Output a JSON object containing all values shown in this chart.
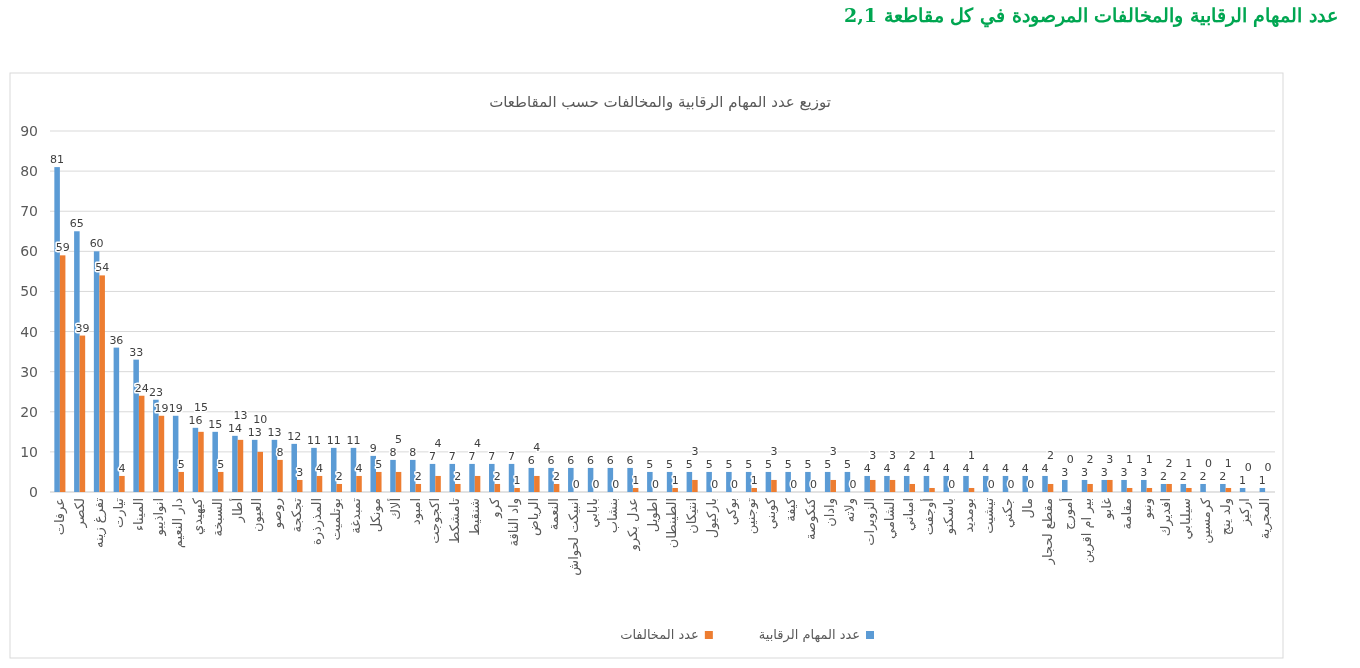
{
  "chart_data": {
    "type": "bar",
    "title": "2,1   عدد المهام الرقابية والمخالفات المرصودة في كل مقاطعة",
    "subtitle": "توزيع عدد المهام الرقابية والمخالفات حسب المقاطعات",
    "categories": [
      "عرفات",
      "لكصر",
      "تفرغ زينه",
      "تيارت",
      "الميناء",
      "انواذيبو",
      "دار النعيم",
      "كيهيدي",
      "السبخة",
      "أطار",
      "العيون",
      "روصو",
      "تجكجة",
      "المذرذرة",
      "بوتلميت",
      "تمبدغة",
      "مونكل",
      "ألاك",
      "امبود",
      "اكجوجت",
      "تامشكط",
      "شنقيط",
      "كرو",
      "واد الناقة",
      "الرياض",
      "النعمة",
      "انبيكت لحواش",
      "بابابي",
      "بنشاب",
      "عدل بكرو",
      "اطويل",
      "الطينطان",
      "انتيكان",
      "باركيول",
      "بوكي",
      "توجنين",
      "كوبني",
      "كيفة",
      "كنكوصة",
      "وادان",
      "ولاته",
      "الزويرات",
      "الشامي",
      "امباني",
      "أوجفت",
      "باسكنو",
      "بومديد",
      "تيشيت",
      "جكني",
      "مال",
      "مقطع لحجار",
      "أمورج",
      "بير ام اقرين",
      "غابو",
      "مقامة",
      "ونبو",
      "افديرك",
      "سيلبابي",
      "كرمسين",
      "ولد ينج",
      "اركيز",
      "المجرية"
    ],
    "series": [
      {
        "name": "عدد المهام الرقابية",
        "color": "#5b9bd5",
        "values": [
          81,
          65,
          60,
          36,
          33,
          23,
          19,
          16,
          15,
          14,
          13,
          13,
          12,
          11,
          11,
          11,
          9,
          8,
          8,
          7,
          7,
          7,
          7,
          7,
          6,
          6,
          6,
          6,
          6,
          6,
          5,
          5,
          5,
          5,
          5,
          5,
          5,
          5,
          5,
          5,
          5,
          4,
          4,
          4,
          4,
          4,
          4,
          4,
          4,
          4,
          4,
          3,
          3,
          3,
          3,
          3,
          2,
          2,
          2,
          2,
          1,
          1
        ]
      },
      {
        "name": "عدد المخالفات",
        "color": "#ed7d31",
        "values": [
          59,
          39,
          54,
          4,
          24,
          19,
          5,
          15,
          5,
          13,
          10,
          8,
          3,
          4,
          2,
          4,
          5,
          5,
          2,
          4,
          2,
          4,
          2,
          1,
          4,
          2,
          0,
          0,
          0,
          1,
          0,
          1,
          3,
          0,
          0,
          1,
          3,
          0,
          0,
          3,
          0,
          3,
          3,
          2,
          1,
          0,
          1,
          0,
          0,
          0,
          2,
          0,
          2,
          3,
          1,
          1,
          2,
          1,
          0,
          1,
          0,
          0
        ]
      }
    ],
    "ylim": [
      0,
      90
    ],
    "yticks": [
      0,
      10,
      20,
      30,
      40,
      50,
      60,
      70,
      80,
      90
    ],
    "grid": "y",
    "legend": "bottom",
    "data_labels": true
  }
}
